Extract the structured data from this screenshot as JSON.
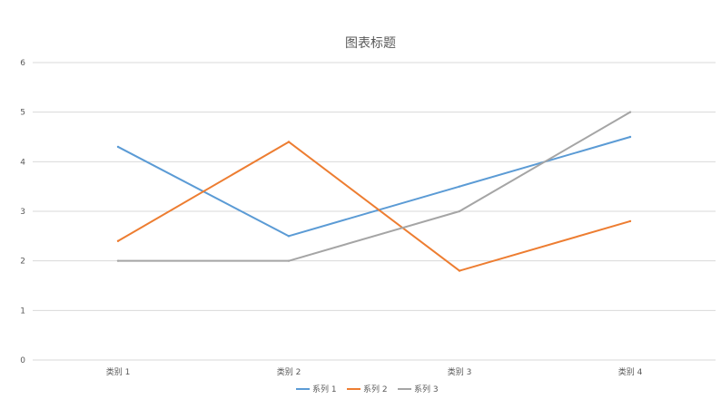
{
  "chart_data": {
    "type": "line",
    "title": "图表标题",
    "xlabel": "",
    "ylabel": "",
    "categories": [
      "类别 1",
      "类别 2",
      "类别 3",
      "类别 4"
    ],
    "ylim": [
      0,
      6
    ],
    "yticks": [
      0,
      1,
      2,
      3,
      4,
      5,
      6
    ],
    "grid": true,
    "legend_position": "bottom",
    "series": [
      {
        "name": "系列 1",
        "color": "#5B9BD5",
        "values": [
          4.3,
          2.5,
          3.5,
          4.5
        ]
      },
      {
        "name": "系列 2",
        "color": "#ED7D31",
        "values": [
          2.4,
          4.4,
          1.8,
          2.8
        ]
      },
      {
        "name": "系列 3",
        "color": "#A5A5A5",
        "values": [
          2.0,
          2.0,
          3.0,
          5.0
        ]
      }
    ]
  }
}
